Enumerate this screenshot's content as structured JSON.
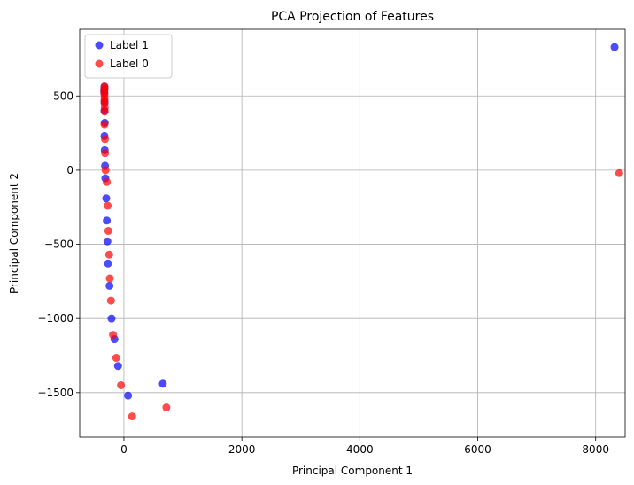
{
  "chart_data": {
    "type": "scatter",
    "title": "PCA Projection of Features",
    "xlabel": "Principal Component 1",
    "ylabel": "Principal Component 2",
    "xlim": [
      -750,
      8500
    ],
    "ylim": [
      -1800,
      950
    ],
    "xticks": [
      0,
      2000,
      4000,
      6000,
      8000
    ],
    "yticks": [
      -1500,
      -1000,
      -500,
      0,
      500
    ],
    "xtick_labels": [
      "0",
      "2000",
      "4000",
      "6000",
      "8000"
    ],
    "ytick_labels": [
      "−1500",
      "−1000",
      "−500",
      "0",
      "500"
    ],
    "grid": true,
    "legend_position": "top-left",
    "series": [
      {
        "name": "Label 1",
        "color": "#0000ff",
        "points": [
          [
            -330,
            560
          ],
          [
            -335,
            540
          ],
          [
            -332,
            520
          ],
          [
            -328,
            460
          ],
          [
            -330,
            400
          ],
          [
            -325,
            320
          ],
          [
            -330,
            230
          ],
          [
            -325,
            135
          ],
          [
            -320,
            30
          ],
          [
            -315,
            -55
          ],
          [
            -300,
            -190
          ],
          [
            -290,
            -340
          ],
          [
            -280,
            -480
          ],
          [
            -270,
            -630
          ],
          [
            -245,
            -780
          ],
          [
            -210,
            -1000
          ],
          [
            -160,
            -1140
          ],
          [
            -100,
            -1320
          ],
          [
            70,
            -1520
          ],
          [
            660,
            -1440
          ],
          [
            8320,
            830
          ]
        ]
      },
      {
        "name": "Label 0",
        "color": "#ff0000",
        "points": [
          [
            -330,
            565
          ],
          [
            -328,
            548
          ],
          [
            -333,
            530
          ],
          [
            -330,
            510
          ],
          [
            -328,
            488
          ],
          [
            -330,
            470
          ],
          [
            -328,
            450
          ],
          [
            -325,
            420
          ],
          [
            -326,
            395
          ],
          [
            -330,
            310
          ],
          [
            -322,
            210
          ],
          [
            -320,
            115
          ],
          [
            -312,
            0
          ],
          [
            -290,
            -80
          ],
          [
            -275,
            -240
          ],
          [
            -265,
            -410
          ],
          [
            -250,
            -570
          ],
          [
            -240,
            -730
          ],
          [
            -220,
            -880
          ],
          [
            -185,
            -1110
          ],
          [
            -130,
            -1265
          ],
          [
            -50,
            -1450
          ],
          [
            140,
            -1660
          ],
          [
            720,
            -1600
          ],
          [
            8400,
            -20
          ]
        ]
      }
    ]
  }
}
